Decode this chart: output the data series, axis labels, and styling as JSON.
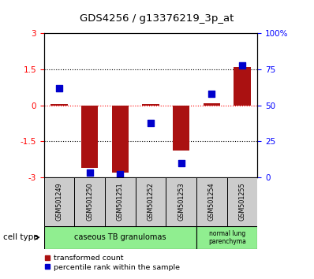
{
  "title": "GDS4256 / g13376219_3p_at",
  "samples": [
    "GSM501249",
    "GSM501250",
    "GSM501251",
    "GSM501252",
    "GSM501253",
    "GSM501254",
    "GSM501255"
  ],
  "transformed_counts": [
    0.05,
    -2.6,
    -2.8,
    0.05,
    -1.9,
    0.1,
    1.6
  ],
  "percentile_ranks": [
    62,
    3,
    2,
    38,
    10,
    58,
    78
  ],
  "ylim_left": [
    -3,
    3
  ],
  "ylim_right": [
    0,
    100
  ],
  "yticks_left": [
    -3,
    -1.5,
    0,
    1.5,
    3
  ],
  "ytick_labels_left": [
    "-3",
    "-1.5",
    "0",
    "1.5",
    "3"
  ],
  "yticks_right": [
    0,
    25,
    50,
    75,
    100
  ],
  "ytick_labels_right": [
    "0",
    "25",
    "50",
    "75",
    "100%"
  ],
  "bar_color": "#aa1111",
  "dot_color": "#0000cc",
  "bar_width": 0.55,
  "dot_size": 28,
  "sample_box_color": "#cccccc",
  "cell_color": "#90EE90",
  "legend_red_label": "transformed count",
  "legend_blue_label": "percentile rank within the sample",
  "cell_type_label": "cell type",
  "cell_group1_label": "caseous TB granulomas",
  "cell_group2_label": "normal lung\nparenchyma"
}
